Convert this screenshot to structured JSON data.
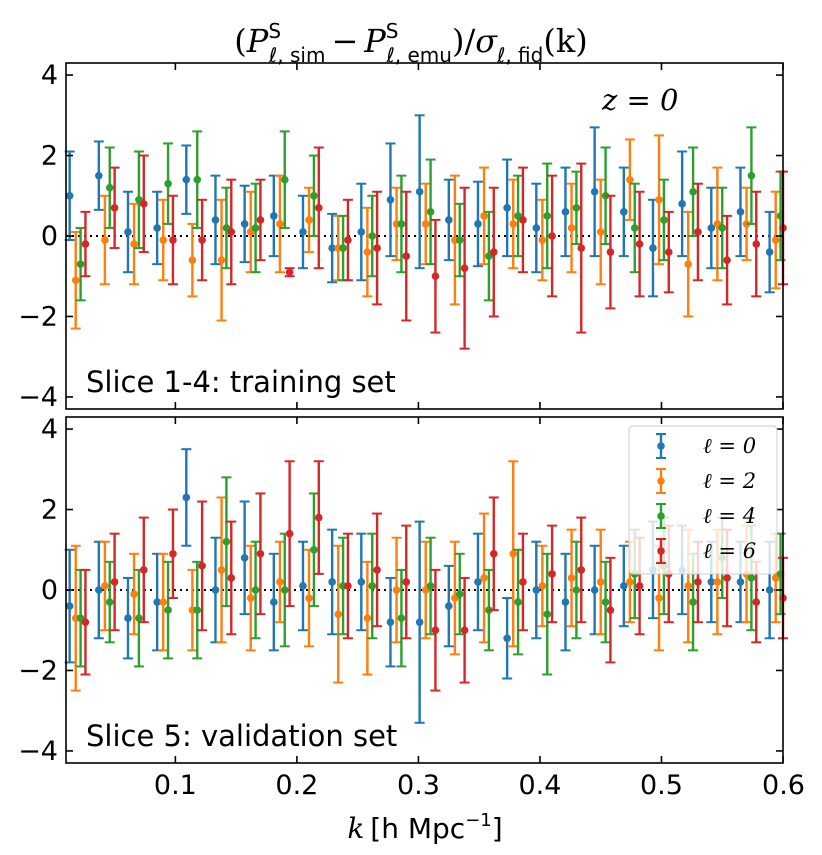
{
  "title": {
    "open": "(",
    "p1": "P",
    "p1_sup": "S",
    "p1_sub": "ℓ, sim",
    "minus": "−",
    "p2": "P",
    "p2_sup": "S",
    "p2_sub": "ℓ, emu",
    "close": ")/",
    "sigma": "σ",
    "sigma_sub": "ℓ, fid",
    "arg": "(k)"
  },
  "xlabel": {
    "k": "k",
    "unit": "[h Mpc",
    "exp": "−1",
    "close": "]"
  },
  "colors": {
    "l0": "#1f77b4",
    "l2": "#ff7f0e",
    "l4": "#2ca02c",
    "l6": "#d62728"
  },
  "chart_data": [
    {
      "type": "scatter",
      "panel": "top",
      "annotation": "Slice 1-4: training set",
      "redshift_label": "z = 0",
      "xlim": [
        0.01,
        0.6
      ],
      "ylim": [
        -4.3,
        4.3
      ],
      "xticks": [
        "0.1",
        "0.2",
        "0.3",
        "0.4",
        "0.5",
        "0.6"
      ],
      "yticks": [
        "4",
        "2",
        "0",
        "−2",
        "−4"
      ],
      "reference_line": 0,
      "series": [
        {
          "name": "ℓ = 0",
          "color": "#1f77b4",
          "x": [
            0.013,
            0.037,
            0.061,
            0.085,
            0.109,
            0.133,
            0.157,
            0.181,
            0.205,
            0.229,
            0.253,
            0.277,
            0.301,
            0.325,
            0.349,
            0.373,
            0.397,
            0.421,
            0.445,
            0.469,
            0.493,
            0.517,
            0.541,
            0.565,
            0.589
          ],
          "y": [
            1.0,
            1.5,
            0.1,
            0.2,
            1.4,
            0.4,
            0.3,
            0.5,
            0.1,
            -0.3,
            0.1,
            0.9,
            1.1,
            0.4,
            0.3,
            0.7,
            0.2,
            0.6,
            1.1,
            0.6,
            -0.3,
            0.8,
            0.2,
            0.6,
            -0.4
          ],
          "err": [
            1.1,
            0.85,
            1.0,
            0.9,
            0.85,
            1.1,
            0.95,
            1.0,
            0.9,
            0.85,
            1.2,
            1.4,
            1.9,
            1.0,
            1.05,
            1.2,
            1.1,
            1.1,
            1.6,
            1.1,
            1.2,
            1.3,
            1.0,
            1.1,
            1.0
          ]
        },
        {
          "name": "ℓ = 2",
          "color": "#ff7f0e",
          "x": [
            0.018,
            0.042,
            0.066,
            0.09,
            0.114,
            0.138,
            0.162,
            0.186,
            0.21,
            0.234,
            0.258,
            0.282,
            0.306,
            0.33,
            0.354,
            0.378,
            0.402,
            0.426,
            0.45,
            0.474,
            0.498,
            0.522,
            0.546,
            0.57,
            0.594
          ],
          "y": [
            -1.1,
            -0.1,
            -0.2,
            -0.1,
            -0.6,
            -0.6,
            0.1,
            0.3,
            0.4,
            -0.3,
            -0.4,
            0.3,
            0.3,
            -0.1,
            0.5,
            0.3,
            -0.1,
            0.2,
            0.1,
            1.4,
            0.9,
            -0.7,
            0.3,
            0.3,
            -0.1
          ],
          "err": [
            1.2,
            1.1,
            1.0,
            1.0,
            0.9,
            1.5,
            1.0,
            1.2,
            0.8,
            0.8,
            1.1,
            0.9,
            1.0,
            1.6,
            1.2,
            1.1,
            1.0,
            1.1,
            1.3,
            1.0,
            1.6,
            1.3,
            1.4,
            0.9,
            1.2
          ]
        },
        {
          "name": "ℓ = 4",
          "color": "#2ca02c",
          "x": [
            0.022,
            0.046,
            0.07,
            0.094,
            0.118,
            0.142,
            0.166,
            0.19,
            0.214,
            0.238,
            0.262,
            0.286,
            0.31,
            0.334,
            0.358,
            0.382,
            0.406,
            0.43,
            0.454,
            0.478,
            0.502,
            0.526,
            0.55,
            0.574,
            0.598
          ],
          "y": [
            -0.7,
            1.2,
            0.9,
            1.3,
            1.4,
            0.2,
            0.2,
            1.4,
            1.0,
            -0.3,
            0.0,
            0.3,
            0.6,
            -0.1,
            -0.5,
            0.5,
            0.5,
            0.7,
            1.0,
            0.2,
            0.4,
            1.1,
            0.2,
            1.5,
            0.5
          ],
          "err": [
            0.9,
            1.0,
            1.2,
            1.0,
            1.2,
            1.0,
            1.1,
            1.2,
            1.0,
            0.8,
            1.0,
            1.2,
            1.3,
            0.9,
            1.1,
            1.0,
            1.3,
            0.9,
            1.2,
            1.1,
            1.0,
            1.1,
            1.0,
            1.2,
            1.1
          ]
        },
        {
          "name": "ℓ = 6",
          "color": "#d62728",
          "x": [
            0.026,
            0.05,
            0.074,
            0.098,
            0.122,
            0.146,
            0.17,
            0.194,
            0.218,
            0.242,
            0.266,
            0.29,
            0.314,
            0.338,
            0.362,
            0.386,
            0.41,
            0.434,
            0.458,
            0.482,
            0.506,
            0.53,
            0.554,
            0.578,
            0.6
          ],
          "y": [
            -0.2,
            0.7,
            0.8,
            -0.1,
            -0.1,
            0.1,
            0.4,
            -0.9,
            0.7,
            -0.1,
            -0.3,
            -0.5,
            -1.0,
            -0.8,
            -0.4,
            0.4,
            0.0,
            -0.3,
            -0.4,
            -0.2,
            -0.4,
            0.1,
            -0.6,
            -0.2,
            0.2
          ],
          "err": [
            0.8,
            1.0,
            1.2,
            1.1,
            1.0,
            1.3,
            1.0,
            0.1,
            1.5,
            1.0,
            1.4,
            1.6,
            1.4,
            2.0,
            1.6,
            1.3,
            1.5,
            2.1,
            1.4,
            1.3,
            1.0,
            1.2,
            1.1,
            1.3,
            1.4
          ]
        }
      ]
    },
    {
      "type": "scatter",
      "panel": "bottom",
      "annotation": "Slice 5: validation set",
      "xlim": [
        0.01,
        0.6
      ],
      "ylim": [
        -4.3,
        4.3
      ],
      "xticks": [
        "0.1",
        "0.2",
        "0.3",
        "0.4",
        "0.5",
        "0.6"
      ],
      "yticks": [
        "4",
        "2",
        "0",
        "−2",
        "−4"
      ],
      "reference_line": 0,
      "legend_position": "top-right",
      "legend": [
        "ℓ = 0",
        "ℓ = 2",
        "ℓ = 4",
        "ℓ = 6"
      ],
      "series": [
        {
          "name": "ℓ = 0",
          "color": "#1f77b4",
          "x": [
            0.013,
            0.037,
            0.061,
            0.085,
            0.109,
            0.133,
            0.157,
            0.181,
            0.205,
            0.229,
            0.253,
            0.277,
            0.301,
            0.325,
            0.349,
            0.373,
            0.397,
            0.421,
            0.445,
            0.469,
            0.493,
            0.517,
            0.541,
            0.565,
            0.589
          ],
          "y": [
            -0.4,
            0.0,
            -0.7,
            -0.3,
            2.3,
            0.0,
            0.8,
            -0.3,
            0.1,
            0.2,
            0.2,
            -0.8,
            -0.8,
            -0.4,
            0.2,
            -1.2,
            0.0,
            -0.3,
            0.0,
            0.1,
            0.5,
            0.5,
            0.2,
            0.2,
            0.0
          ],
          "err": [
            1.4,
            1.2,
            1.0,
            1.2,
            1.2,
            1.3,
            1.4,
            1.2,
            1.1,
            1.3,
            1.2,
            1.1,
            2.5,
            1.0,
            1.2,
            1.0,
            1.2,
            1.2,
            1.1,
            1.0,
            1.2,
            1.1,
            1.0,
            1.0,
            1.2
          ]
        },
        {
          "name": "ℓ = 2",
          "color": "#ff7f0e",
          "x": [
            0.018,
            0.042,
            0.066,
            0.09,
            0.114,
            0.138,
            0.162,
            0.186,
            0.21,
            0.234,
            0.258,
            0.282,
            0.306,
            0.33,
            0.354,
            0.378,
            0.402,
            0.426,
            0.45,
            0.474,
            0.498,
            0.522,
            0.546,
            0.57,
            0.594
          ],
          "y": [
            -0.7,
            0.1,
            -0.1,
            -0.3,
            -0.5,
            0.5,
            -0.2,
            0.2,
            -0.2,
            -0.6,
            -0.7,
            0.0,
            0.0,
            -0.2,
            0.3,
            0.9,
            0.1,
            0.3,
            0.2,
            0.2,
            -0.2,
            0.1,
            0.2,
            0.4,
            0.3
          ],
          "err": [
            1.8,
            1.1,
            1.0,
            1.2,
            1.0,
            1.8,
            1.3,
            1.0,
            1.2,
            1.7,
            1.4,
            1.3,
            1.2,
            1.4,
            1.6,
            2.3,
            1.0,
            1.2,
            1.3,
            1.0,
            1.3,
            1.4,
            1.3,
            1.2,
            1.1
          ]
        },
        {
          "name": "ℓ = 4",
          "color": "#2ca02c",
          "x": [
            0.022,
            0.046,
            0.07,
            0.094,
            0.118,
            0.142,
            0.166,
            0.19,
            0.214,
            0.238,
            0.262,
            0.286,
            0.31,
            0.334,
            0.358,
            0.382,
            0.406,
            0.43,
            0.454,
            0.478,
            0.502,
            0.526,
            0.55,
            0.574,
            0.598
          ],
          "y": [
            -0.7,
            -0.3,
            -0.7,
            -0.5,
            -0.5,
            1.2,
            0.0,
            0.0,
            1.0,
            0.1,
            0.1,
            -0.7,
            0.1,
            -0.1,
            -0.5,
            -0.3,
            -0.6,
            0.0,
            -0.3,
            0.4,
            0.6,
            -0.3,
            0.8,
            0.3,
            0.4
          ],
          "err": [
            1.2,
            1.0,
            1.2,
            1.2,
            1.2,
            1.6,
            1.2,
            1.4,
            1.4,
            1.2,
            1.3,
            1.2,
            1.2,
            1.0,
            1.0,
            1.3,
            1.5,
            1.2,
            1.0,
            1.1,
            1.2,
            1.2,
            1.0,
            1.3,
            1.0
          ]
        },
        {
          "name": "ℓ = 6",
          "color": "#d62728",
          "x": [
            0.026,
            0.05,
            0.074,
            0.098,
            0.122,
            0.146,
            0.17,
            0.194,
            0.218,
            0.242,
            0.266,
            0.29,
            0.314,
            0.338,
            0.362,
            0.386,
            0.41,
            0.434,
            0.458,
            0.482,
            0.506,
            0.53,
            0.554,
            0.578,
            0.6
          ],
          "y": [
            -0.8,
            0.2,
            0.5,
            0.9,
            0.6,
            0.3,
            0.9,
            1.4,
            1.8,
            0.1,
            0.5,
            0.2,
            -1.0,
            -1.0,
            0.9,
            0.2,
            0.4,
            0.5,
            -0.5,
            0.1,
            0.4,
            0.2,
            0.3,
            -0.3,
            -0.2
          ],
          "err": [
            1.3,
            1.2,
            1.3,
            1.1,
            1.6,
            1.4,
            1.5,
            1.8,
            1.4,
            1.3,
            1.4,
            1.4,
            1.5,
            1.3,
            1.4,
            1.2,
            1.2,
            1.3,
            1.3,
            1.2,
            1.2,
            1.0,
            1.2,
            1.0,
            1.0
          ]
        }
      ]
    }
  ]
}
